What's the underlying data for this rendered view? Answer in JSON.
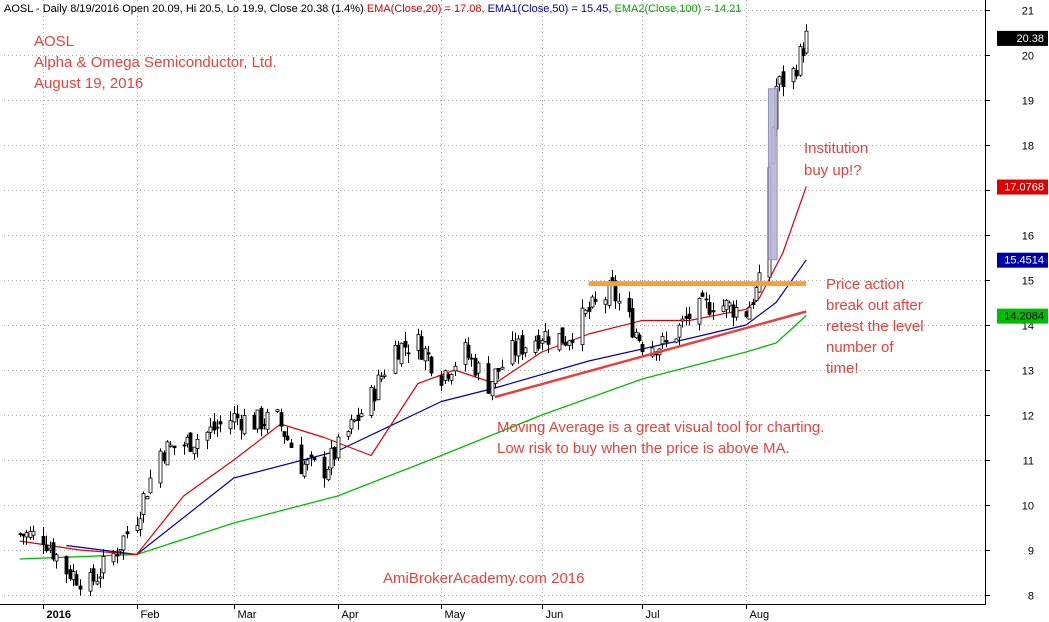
{
  "header": {
    "prefix": "AOSL - Daily 8/19/2016 Open 20.09, Hi 20.5, Lo 19.9, Close 20.38 (1.4%)",
    "ema20": "EMA(Close,20) = 17.08,",
    "ema50": "EMA1(Close,50) = 15.45,",
    "ema100": "EMA2(Close,100) = 14.21"
  },
  "title_lines": [
    "AOSL",
    "Alpha & Omega Semiconductor, Ltd.",
    "August 19, 2016"
  ],
  "annotations": {
    "institution": [
      "Institution",
      "buy up!?"
    ],
    "breakout": [
      "Price action",
      "break out after",
      "retest the level",
      "number of",
      "time!"
    ],
    "ma_note": [
      "Moving Average is a great visual tool for charting.",
      "Low risk to buy when the price is above MA."
    ],
    "watermark": "AmiBrokerAcademy.com  2016"
  },
  "colors": {
    "ema20": "#dd0000",
    "ema50": "#0000aa",
    "ema100": "#00bb00",
    "annotation": "#e8413a",
    "resistance": "#f5a040",
    "trendline": "#e84040",
    "highlight": "#b8b4d8"
  },
  "chart_data": {
    "type": "candlestick",
    "ylim": [
      7.8,
      21.3
    ],
    "y_ticks": [
      8,
      9,
      10,
      11,
      12,
      13,
      14,
      15,
      16,
      17,
      18,
      19,
      20,
      21
    ],
    "x_ticks": [
      {
        "label": "2016",
        "date": "2016-01-04"
      },
      {
        "label": "Feb",
        "date": "2016-02-01"
      },
      {
        "label": "Mar",
        "date": "2016-03-01"
      },
      {
        "label": "Apr",
        "date": "2016-04-01"
      },
      {
        "label": "May",
        "date": "2016-05-02"
      },
      {
        "label": "Jun",
        "date": "2016-06-01"
      },
      {
        "label": "Jul",
        "date": "2016-07-01"
      },
      {
        "label": "Aug",
        "date": "2016-08-01"
      }
    ],
    "badges": [
      {
        "value": "20.38",
        "y": 20.38,
        "bg": "#000000",
        "fg": "#ffffff"
      },
      {
        "value": "17.0768",
        "y": 17.0768,
        "bg": "#dd0000",
        "fg": "#ffffff"
      },
      {
        "value": "15.4514",
        "y": 15.4514,
        "bg": "#0000aa",
        "fg": "#ffffff"
      },
      {
        "value": "14.2084",
        "y": 14.2084,
        "bg": "#00bb00",
        "fg": "#000000"
      }
    ],
    "resistance": {
      "y": 14.92,
      "from": "2016-06-15",
      "to": "2016-08-19"
    },
    "trendline": [
      {
        "date": "2016-05-18",
        "y": 12.4
      },
      {
        "date": "2016-08-19",
        "y": 14.3
      }
    ],
    "highlight_box": {
      "from": "2016-08-08",
      "to": "2016-08-10",
      "low": 15.45,
      "high": 19.25
    },
    "closes": [
      {
        "date": "2015-12-28",
        "c": 9.35
      },
      {
        "date": "2016-01-04",
        "c": 9.3
      },
      {
        "date": "2016-01-11",
        "c": 8.55
      },
      {
        "date": "2016-01-18",
        "c": 8.25
      },
      {
        "date": "2016-01-25",
        "c": 8.9
      },
      {
        "date": "2016-02-01",
        "c": 9.75
      },
      {
        "date": "2016-02-08",
        "c": 11.2
      },
      {
        "date": "2016-02-15",
        "c": 11.35
      },
      {
        "date": "2016-02-22",
        "c": 11.6
      },
      {
        "date": "2016-03-01",
        "c": 11.95
      },
      {
        "date": "2016-03-07",
        "c": 11.85
      },
      {
        "date": "2016-03-14",
        "c": 11.9
      },
      {
        "date": "2016-03-21",
        "c": 10.9
      },
      {
        "date": "2016-03-28",
        "c": 10.8
      },
      {
        "date": "2016-04-04",
        "c": 11.6
      },
      {
        "date": "2016-04-11",
        "c": 12.4
      },
      {
        "date": "2016-04-18",
        "c": 13.5
      },
      {
        "date": "2016-04-25",
        "c": 13.6
      },
      {
        "date": "2016-05-02",
        "c": 12.9
      },
      {
        "date": "2016-05-09",
        "c": 13.4
      },
      {
        "date": "2016-05-16",
        "c": 12.7
      },
      {
        "date": "2016-05-23",
        "c": 13.4
      },
      {
        "date": "2016-06-01",
        "c": 13.8
      },
      {
        "date": "2016-06-08",
        "c": 13.7
      },
      {
        "date": "2016-06-15",
        "c": 14.3
      },
      {
        "date": "2016-06-22",
        "c": 14.75
      },
      {
        "date": "2016-07-01",
        "c": 13.6
      },
      {
        "date": "2016-07-08",
        "c": 13.55
      },
      {
        "date": "2016-07-15",
        "c": 14.2
      },
      {
        "date": "2016-07-22",
        "c": 14.5
      },
      {
        "date": "2016-08-01",
        "c": 14.3
      },
      {
        "date": "2016-08-05",
        "c": 14.9
      },
      {
        "date": "2016-08-10",
        "c": 19.3
      },
      {
        "date": "2016-08-15",
        "c": 19.6
      },
      {
        "date": "2016-08-19",
        "c": 20.38
      }
    ],
    "ema20": [
      {
        "date": "2015-12-28",
        "v": 9.2
      },
      {
        "date": "2016-01-15",
        "v": 9.0
      },
      {
        "date": "2016-02-01",
        "v": 8.9
      },
      {
        "date": "2016-02-15",
        "v": 10.2
      },
      {
        "date": "2016-03-01",
        "v": 11.0
      },
      {
        "date": "2016-03-15",
        "v": 11.8
      },
      {
        "date": "2016-03-28",
        "v": 11.5
      },
      {
        "date": "2016-04-11",
        "v": 11.1
      },
      {
        "date": "2016-04-25",
        "v": 12.7
      },
      {
        "date": "2016-05-06",
        "v": 13.0
      },
      {
        "date": "2016-05-18",
        "v": 12.7
      },
      {
        "date": "2016-06-01",
        "v": 13.4
      },
      {
        "date": "2016-06-15",
        "v": 13.8
      },
      {
        "date": "2016-07-01",
        "v": 14.1
      },
      {
        "date": "2016-07-15",
        "v": 14.1
      },
      {
        "date": "2016-08-01",
        "v": 14.35
      },
      {
        "date": "2016-08-05",
        "v": 14.6
      },
      {
        "date": "2016-08-12",
        "v": 15.6
      },
      {
        "date": "2016-08-19",
        "v": 17.08
      }
    ],
    "ema50": [
      {
        "date": "2016-01-11",
        "v": 9.1
      },
      {
        "date": "2016-02-01",
        "v": 8.9
      },
      {
        "date": "2016-03-01",
        "v": 10.6
      },
      {
        "date": "2016-04-01",
        "v": 11.2
      },
      {
        "date": "2016-05-02",
        "v": 12.3
      },
      {
        "date": "2016-05-18",
        "v": 12.6
      },
      {
        "date": "2016-06-15",
        "v": 13.2
      },
      {
        "date": "2016-07-15",
        "v": 13.7
      },
      {
        "date": "2016-08-01",
        "v": 14.0
      },
      {
        "date": "2016-08-10",
        "v": 14.5
      },
      {
        "date": "2016-08-19",
        "v": 15.45
      }
    ],
    "ema100": [
      {
        "date": "2015-12-28",
        "v": 8.8
      },
      {
        "date": "2016-02-01",
        "v": 8.9
      },
      {
        "date": "2016-03-01",
        "v": 9.6
      },
      {
        "date": "2016-04-01",
        "v": 10.2
      },
      {
        "date": "2016-05-02",
        "v": 11.1
      },
      {
        "date": "2016-06-01",
        "v": 12.0
      },
      {
        "date": "2016-07-01",
        "v": 12.8
      },
      {
        "date": "2016-08-01",
        "v": 13.4
      },
      {
        "date": "2016-08-10",
        "v": 13.6
      },
      {
        "date": "2016-08-19",
        "v": 14.21
      }
    ]
  }
}
